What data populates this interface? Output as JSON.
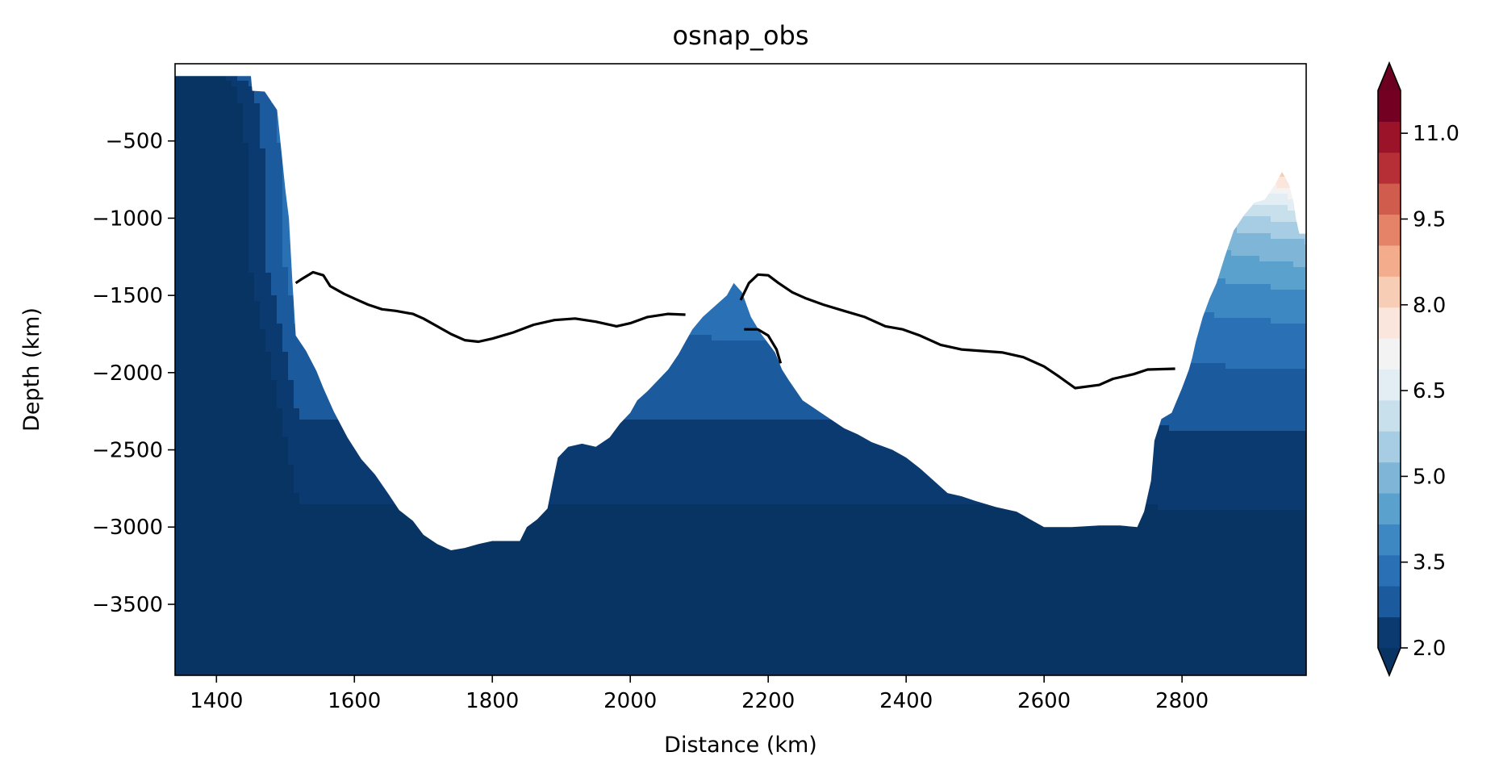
{
  "chart_data": {
    "type": "contourf",
    "title": "osnap_obs",
    "xlabel": "Distance (km)",
    "ylabel": "Depth (km)",
    "xlim": [
      1340,
      2980
    ],
    "ylim": [
      -3960,
      0
    ],
    "xticks": [
      1400,
      1600,
      1800,
      2000,
      2200,
      2400,
      2600,
      2800
    ],
    "yticks": [
      -500,
      -1000,
      -1500,
      -2000,
      -2500,
      -3000,
      -3500
    ],
    "grid": false,
    "colorbar": {
      "min": 2.0,
      "max": 11.75,
      "level_step": 0.5,
      "extend": "both",
      "ticks": [
        2.0,
        3.5,
        5.0,
        6.5,
        8.0,
        9.5,
        11.0
      ],
      "colormap": "RdBu_r",
      "colors": [
        "#0a3a70",
        "#1c5a9e",
        "#2a70b5",
        "#3d88c2",
        "#5aa1ce",
        "#7fb6d8",
        "#a6cde3",
        "#c8dfec",
        "#e3edf4",
        "#f3f3f3",
        "#fbe6de",
        "#f8cdb6",
        "#f3ac8c",
        "#e58368",
        "#d05c4d",
        "#b62f37",
        "#9a1329",
        "#730023"
      ],
      "under_color": "#073463",
      "over_color": "#6b0020"
    },
    "isoline": {
      "level": 3.2,
      "color": "#000000",
      "segments": [
        [
          [
            1515,
            -1420
          ],
          [
            1525,
            -1390
          ],
          [
            1540,
            -1350
          ],
          [
            1555,
            -1370
          ],
          [
            1565,
            -1440
          ],
          [
            1585,
            -1490
          ],
          [
            1605,
            -1530
          ],
          [
            1620,
            -1560
          ],
          [
            1640,
            -1590
          ],
          [
            1660,
            -1600
          ],
          [
            1685,
            -1620
          ],
          [
            1700,
            -1650
          ],
          [
            1720,
            -1700
          ],
          [
            1740,
            -1750
          ],
          [
            1760,
            -1790
          ],
          [
            1780,
            -1800
          ],
          [
            1800,
            -1780
          ],
          [
            1830,
            -1740
          ],
          [
            1860,
            -1690
          ],
          [
            1890,
            -1660
          ],
          [
            1920,
            -1650
          ],
          [
            1950,
            -1670
          ],
          [
            1980,
            -1700
          ],
          [
            2000,
            -1680
          ],
          [
            2025,
            -1640
          ],
          [
            2055,
            -1620
          ],
          [
            2080,
            -1625
          ]
        ],
        [
          [
            2160,
            -1530
          ],
          [
            2172,
            -1420
          ],
          [
            2185,
            -1365
          ],
          [
            2200,
            -1370
          ],
          [
            2215,
            -1420
          ],
          [
            2235,
            -1480
          ],
          [
            2255,
            -1520
          ],
          [
            2280,
            -1560
          ],
          [
            2310,
            -1600
          ],
          [
            2340,
            -1640
          ],
          [
            2370,
            -1700
          ],
          [
            2395,
            -1720
          ],
          [
            2420,
            -1760
          ],
          [
            2450,
            -1820
          ],
          [
            2480,
            -1850
          ],
          [
            2510,
            -1860
          ],
          [
            2540,
            -1870
          ],
          [
            2570,
            -1900
          ],
          [
            2600,
            -1960
          ],
          [
            2620,
            -2020
          ],
          [
            2645,
            -2100
          ],
          [
            2680,
            -2080
          ],
          [
            2700,
            -2040
          ],
          [
            2730,
            -2010
          ],
          [
            2750,
            -1980
          ],
          [
            2790,
            -1975
          ]
        ],
        [
          [
            2165,
            -1720
          ],
          [
            2185,
            -1720
          ],
          [
            2200,
            -1760
          ],
          [
            2212,
            -1850
          ],
          [
            2218,
            -1940
          ]
        ]
      ]
    }
  }
}
